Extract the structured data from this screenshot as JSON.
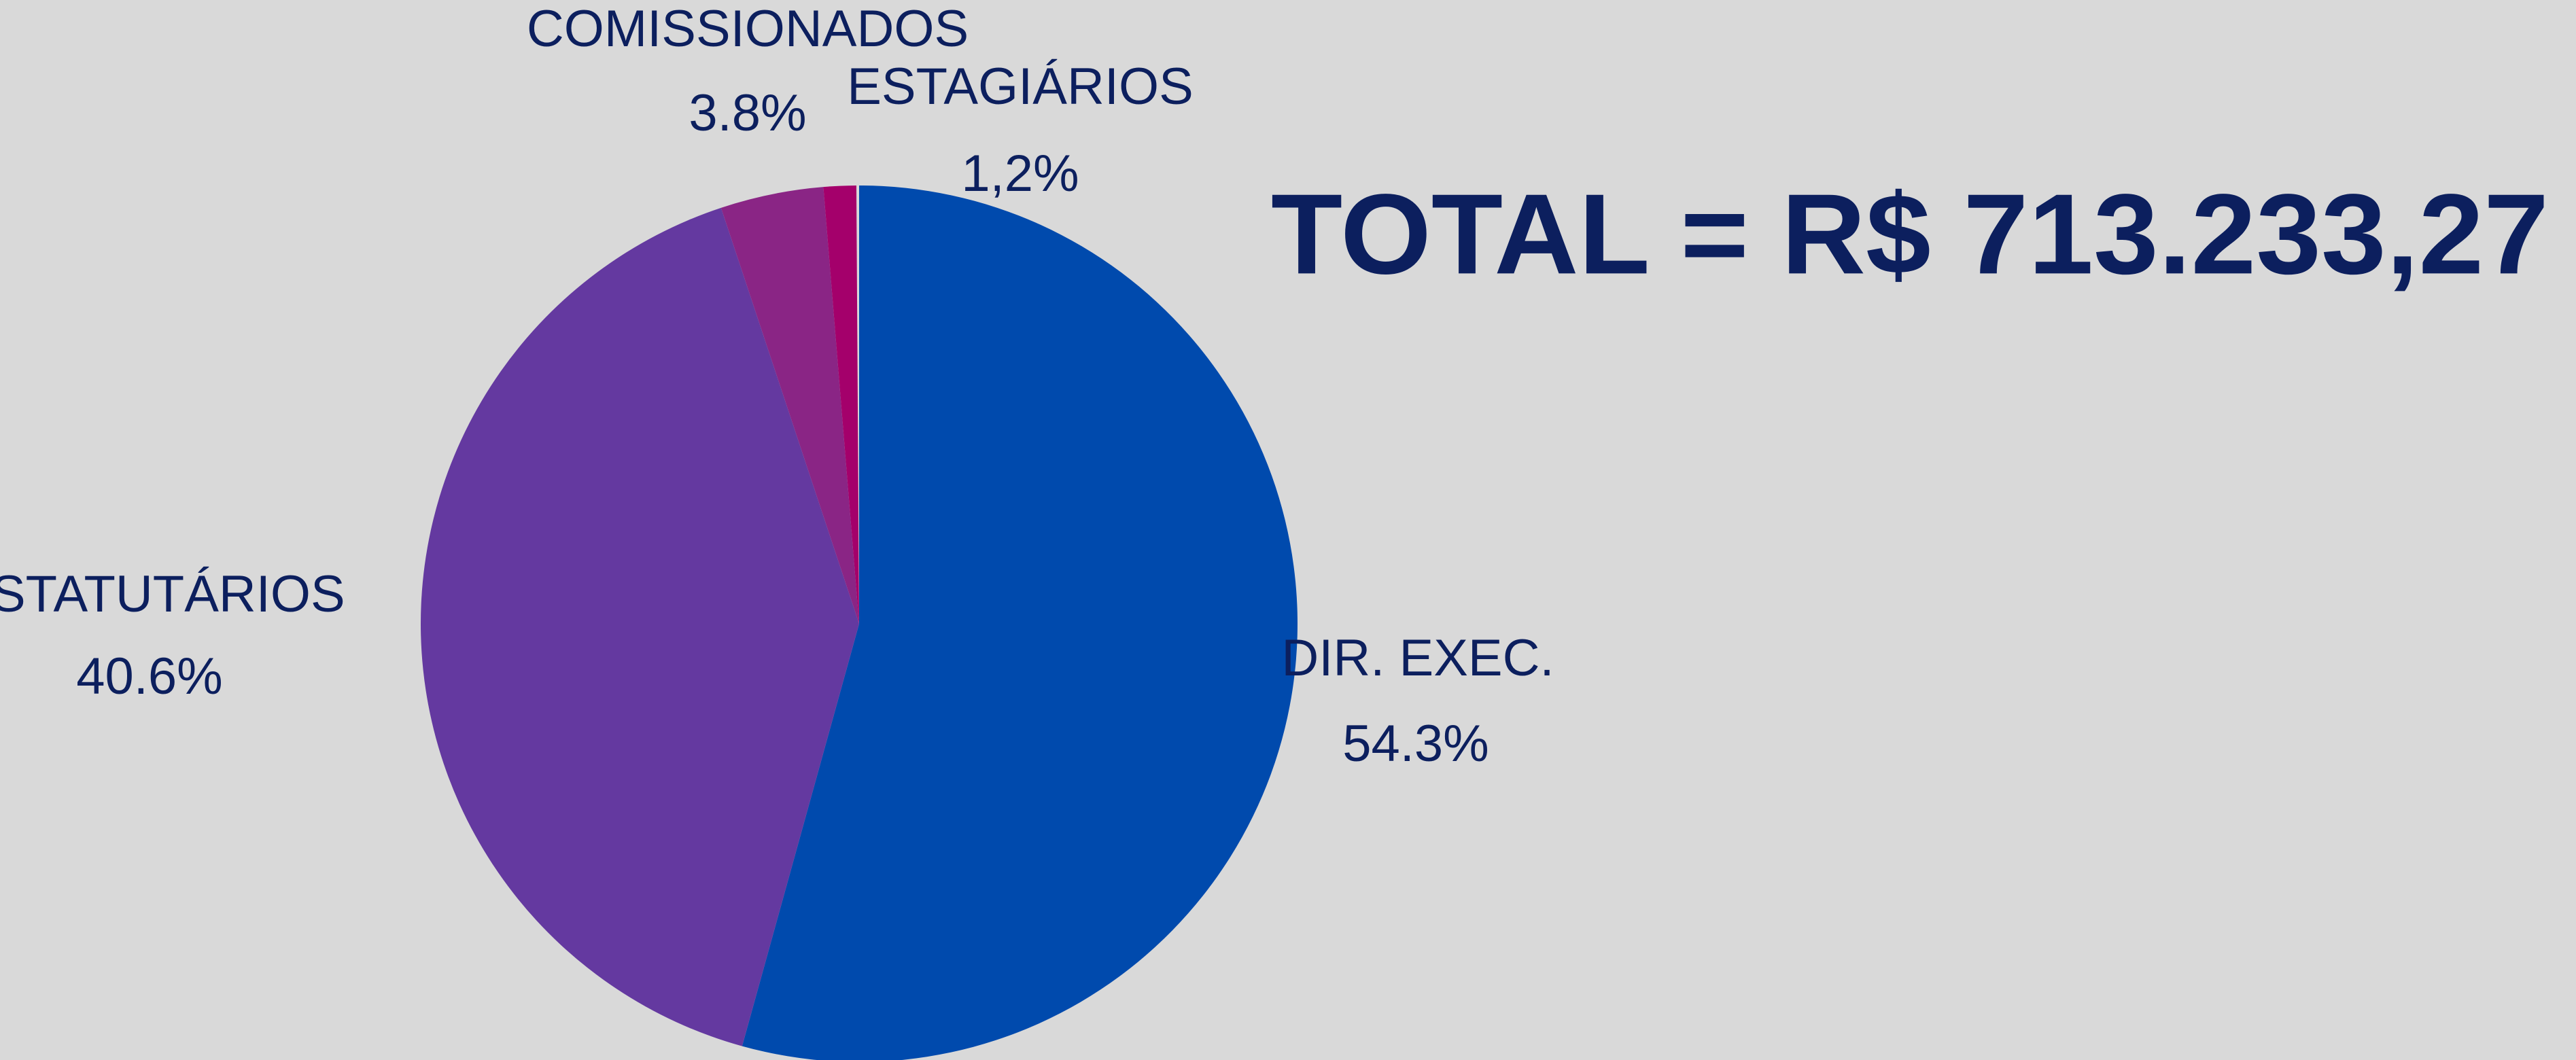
{
  "chart_data": {
    "type": "pie",
    "title": "TOTAL = R$ 713.233,27",
    "categories": [
      "DIR. EXEC.",
      "ESTATUTÁRIOS",
      "COMISSIONADOS",
      "ESTAGIÁRIOS"
    ],
    "values": [
      54.3,
      40.6,
      3.8,
      1.2
    ],
    "value_labels": [
      "54.3%",
      "40.6%",
      "3.8%",
      "1,2%"
    ],
    "colors": [
      "#004aad",
      "#6439a0",
      "#8a2585",
      "#a4006b"
    ]
  }
}
